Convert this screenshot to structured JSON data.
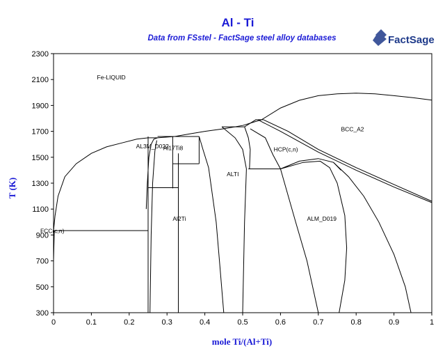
{
  "chart_data": {
    "type": "line",
    "title": "Al - Ti",
    "subtitle": "Data from FSstel - FactSage steel alloy databases",
    "xlabel": "mole Ti/(Al+Ti)",
    "ylabel": "T (K)",
    "xlim": [
      0,
      1
    ],
    "ylim": [
      300,
      2300
    ],
    "x_ticks": [
      0,
      0.1,
      0.2,
      0.3,
      0.4,
      0.5,
      0.6,
      0.7,
      0.8,
      0.9,
      1
    ],
    "y_ticks": [
      300,
      500,
      700,
      900,
      1100,
      1300,
      1500,
      1700,
      1900,
      2100,
      2300
    ],
    "phase_labels": [
      {
        "text": "Fe-LIQUID",
        "x": 0.115,
        "y": 2100
      },
      {
        "text": "BCC_A2",
        "x": 0.76,
        "y": 1700
      },
      {
        "text": "AL3M_D022",
        "x": 0.218,
        "y": 1570
      },
      {
        "text": "Al17Ti8",
        "x": 0.29,
        "y": 1555
      },
      {
        "text": "HCP(c,n)",
        "x": 0.582,
        "y": 1545
      },
      {
        "text": "ALTI",
        "x": 0.458,
        "y": 1355
      },
      {
        "text": "Al2Ti",
        "x": 0.315,
        "y": 1010
      },
      {
        "text": "ALM_D019",
        "x": 0.67,
        "y": 1010
      },
      {
        "text": "FCC(c,n)",
        "x": -0.035,
        "y": 915
      }
    ],
    "series": [
      {
        "values": [
          [
            0.0,
            934
          ],
          [
            0.004,
            1050
          ],
          [
            0.012,
            1200
          ],
          [
            0.03,
            1350
          ],
          [
            0.06,
            1450
          ],
          [
            0.1,
            1530
          ],
          [
            0.14,
            1580
          ],
          [
            0.18,
            1610
          ],
          [
            0.22,
            1640
          ],
          [
            0.25,
            1650
          ],
          [
            0.275,
            1650
          ],
          [
            0.32,
            1660
          ],
          [
            0.36,
            1680
          ],
          [
            0.4,
            1700
          ],
          [
            0.45,
            1720
          ],
          [
            0.5,
            1745
          ],
          [
            0.55,
            1790
          ],
          [
            0.6,
            1880
          ],
          [
            0.65,
            1940
          ],
          [
            0.7,
            1975
          ],
          [
            0.75,
            1990
          ],
          [
            0.8,
            1995
          ],
          [
            0.85,
            1990
          ],
          [
            0.9,
            1975
          ],
          [
            0.95,
            1960
          ],
          [
            1.0,
            1941
          ]
        ]
      },
      {
        "values": [
          [
            0.245,
            1100
          ],
          [
            0.248,
            1300
          ],
          [
            0.252,
            1500
          ],
          [
            0.258,
            1600
          ],
          [
            0.265,
            1640
          ],
          [
            0.275,
            1650
          ]
        ]
      },
      {
        "values": [
          [
            0.255,
            300
          ],
          [
            0.258,
            900
          ],
          [
            0.262,
            1300
          ],
          [
            0.268,
            1550
          ],
          [
            0.273,
            1630
          ]
        ]
      },
      {
        "values": [
          [
            0.33,
            300
          ],
          [
            0.33,
            1530
          ]
        ]
      },
      {
        "values": [
          [
            0.315,
            1260
          ],
          [
            0.315,
            1660
          ]
        ]
      },
      {
        "values": [
          [
            0.25,
            300
          ],
          [
            0.25,
            1660
          ]
        ]
      },
      {
        "values": [
          [
            0.25,
            1265
          ],
          [
            0.33,
            1265
          ]
        ]
      },
      {
        "values": [
          [
            0.275,
            1660
          ],
          [
            0.33,
            1660
          ]
        ]
      },
      {
        "values": [
          [
            0.315,
            1450
          ],
          [
            0.385,
            1450
          ]
        ]
      },
      {
        "values": [
          [
            0.33,
            1660
          ],
          [
            0.385,
            1660
          ]
        ]
      },
      {
        "values": [
          [
            0.385,
            1660
          ],
          [
            0.385,
            1450
          ]
        ]
      },
      {
        "values": [
          [
            0.0,
            934
          ],
          [
            0.25,
            934
          ]
        ]
      },
      {
        "values": [
          [
            0.0,
            700
          ],
          [
            0.002,
            934
          ]
        ]
      },
      {
        "values": [
          [
            0.385,
            1660
          ],
          [
            0.395,
            1560
          ],
          [
            0.41,
            1420
          ],
          [
            0.43,
            1000
          ],
          [
            0.44,
            650
          ],
          [
            0.45,
            300
          ]
        ]
      },
      {
        "values": [
          [
            0.445,
            1735
          ],
          [
            0.48,
            1650
          ],
          [
            0.5,
            1560
          ],
          [
            0.51,
            1410
          ],
          [
            0.505,
            1000
          ],
          [
            0.5,
            300
          ]
        ]
      },
      {
        "values": [
          [
            0.445,
            1735
          ],
          [
            0.505,
            1735
          ]
        ]
      },
      {
        "values": [
          [
            0.505,
            1735
          ],
          [
            0.515,
            1650
          ],
          [
            0.52,
            1560
          ],
          [
            0.518,
            1410
          ],
          [
            0.52,
            1410
          ]
        ]
      },
      {
        "values": [
          [
            0.515,
            1410
          ],
          [
            0.6,
            1410
          ]
        ]
      },
      {
        "values": [
          [
            0.505,
            1735
          ],
          [
            0.535,
            1790
          ],
          [
            0.555,
            1790
          ]
        ]
      },
      {
        "values": [
          [
            0.54,
            1790
          ],
          [
            0.6,
            1700
          ],
          [
            0.7,
            1540
          ],
          [
            0.8,
            1400
          ],
          [
            0.9,
            1270
          ],
          [
            1.0,
            1150
          ]
        ]
      },
      {
        "values": [
          [
            0.555,
            1790
          ],
          [
            0.62,
            1700
          ],
          [
            0.7,
            1560
          ],
          [
            0.8,
            1420
          ],
          [
            0.9,
            1290
          ],
          [
            1.0,
            1160
          ]
        ]
      },
      {
        "values": [
          [
            0.52,
            1720
          ],
          [
            0.56,
            1650
          ],
          [
            0.58,
            1520
          ],
          [
            0.6,
            1410
          ],
          [
            0.64,
            1000
          ],
          [
            0.67,
            700
          ],
          [
            0.7,
            300
          ]
        ]
      },
      {
        "values": [
          [
            0.6,
            1410
          ],
          [
            0.65,
            1470
          ],
          [
            0.7,
            1490
          ],
          [
            0.74,
            1460
          ],
          [
            0.76,
            1400
          ]
        ]
      },
      {
        "values": [
          [
            0.6,
            1410
          ],
          [
            0.66,
            1460
          ],
          [
            0.705,
            1470
          ],
          [
            0.73,
            1420
          ],
          [
            0.75,
            1300
          ],
          [
            0.77,
            1050
          ],
          [
            0.775,
            800
          ],
          [
            0.77,
            550
          ],
          [
            0.755,
            300
          ]
        ]
      },
      {
        "values": [
          [
            0.74,
            1460
          ],
          [
            0.78,
            1350
          ],
          [
            0.82,
            1200
          ],
          [
            0.86,
            1000
          ],
          [
            0.9,
            750
          ],
          [
            0.93,
            500
          ],
          [
            0.945,
            300
          ]
        ]
      }
    ]
  }
}
